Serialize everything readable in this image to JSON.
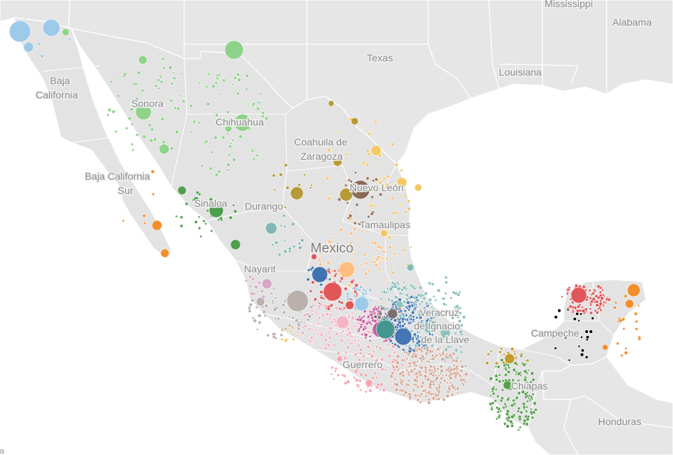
{
  "map": {
    "labels": {
      "mississippi": "Mississippi",
      "alabama": "Alabama",
      "texas": "Texas",
      "louisiana": "Louisiana",
      "baja_california_1": "Baja",
      "baja_california_2": "California",
      "sonora": "Sonora",
      "chihuahua": "Chihuahua",
      "coahuila_1": "Coahuila de",
      "coahuila_2": "Zaragoza",
      "baja_california_sur_1": "Baja California",
      "baja_california_sur_2": "Sur",
      "nuevo_leon": "Nuevo León",
      "sinaloa": "Sinaloa",
      "durango": "Durango",
      "tamaulipas": "Tamaulipas",
      "mexico": "Mexico",
      "nayarit": "Nayarit",
      "veracruz_1": "Veracruz",
      "veracruz_2": "de Ignacio",
      "veracruz_3": "de la Llave",
      "campeche": "Campeche",
      "guerrero": "Guerrero",
      "chiapas": "Chiapas",
      "honduras": "Honduras",
      "corner_glyph": "o"
    },
    "colors": {
      "land": "#e3e3e3",
      "water": "#ffffff",
      "border": "#ffffff",
      "us_land": "#e6e6e6",
      "baja_california": "#9ecae9",
      "sonora": "#8fd28a",
      "sinaloa": "#4e9f4e",
      "baja_california_sur": "#f28e2b",
      "coahuila": "#f4c861",
      "nuevo_leon": "#9c755f",
      "nuevo_leon_big": "#8b6a56",
      "durango": "#b69a35",
      "tamaulipas": "#f3c96e",
      "zacatecas": "#7fb8b5",
      "san_luis_potosi": "#ffbe7d",
      "aguascalientes": "#3f74b1",
      "jalisco": "#bab0ac",
      "guanajuato": "#e15759",
      "queretaro": "#9ecae9",
      "michoacan": "#f5b3c6",
      "mexico_state": "#c85a9c",
      "cdmx": "#43968e",
      "puebla": "#4575b4",
      "hidalgo": "#86bcb6",
      "veracruz": "#8cc3bc",
      "guerrero": "#f7a5b0",
      "oaxaca": "#d4a896",
      "chiapas": "#59a14f",
      "tabasco": "#c39b2a",
      "yucatan": "#e15759",
      "quintana_roo": "#f28e2b",
      "nayarit": "#d4a6c8",
      "colima": "#f4c861",
      "morelos": "#7a6e6e"
    }
  }
}
